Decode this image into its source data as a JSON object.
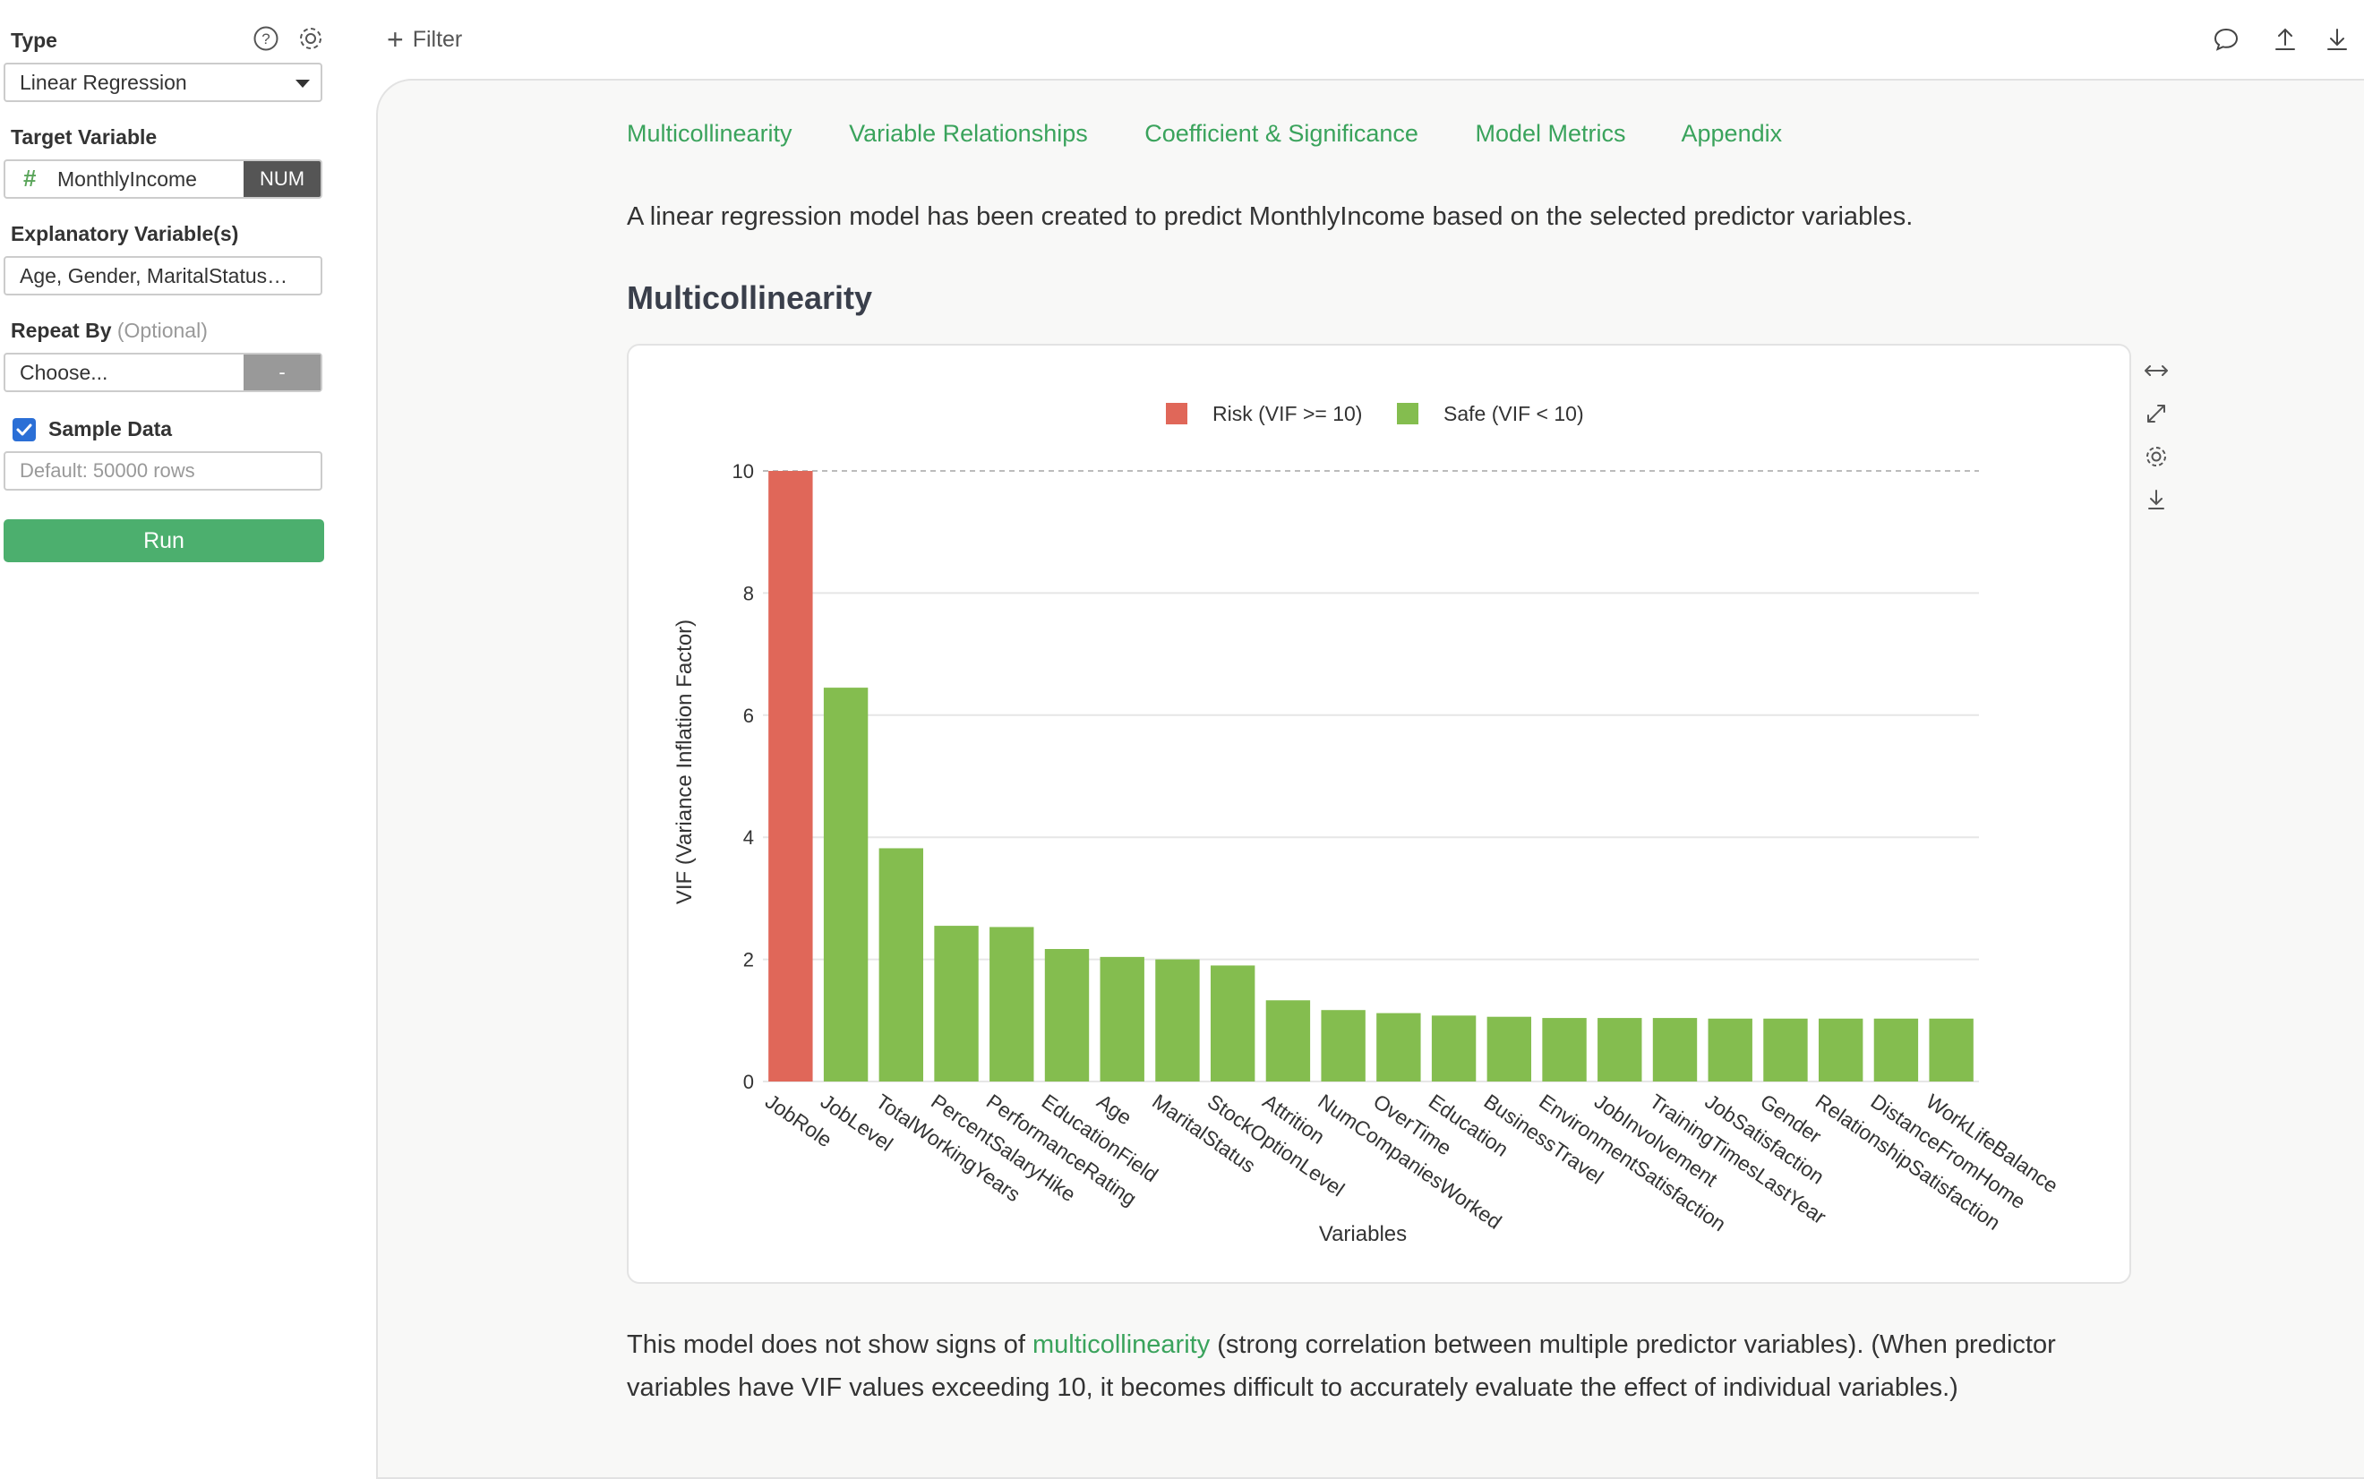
{
  "sidebar": {
    "type_label": "Type",
    "type_value": "Linear Regression",
    "target_label": "Target Variable",
    "target_value": "MonthlyIncome",
    "target_badge": "NUM",
    "explanatory_label": "Explanatory Variable(s)",
    "explanatory_value": "Age, Gender, MaritalStatus…",
    "repeat_label": "Repeat By",
    "repeat_optional": "(Optional)",
    "repeat_value": "Choose...",
    "repeat_button": "-",
    "sample_label": "Sample Data",
    "sample_checked": true,
    "sample_placeholder": "Default: 50000 rows",
    "run_label": "Run"
  },
  "topbar": {
    "filter_label": "Filter",
    "icons": [
      "comment-icon",
      "upload-icon",
      "download-icon"
    ]
  },
  "main": {
    "tabs": [
      {
        "label": "Multicollinearity"
      },
      {
        "label": "Variable Relationships"
      },
      {
        "label": "Coefficient & Significance"
      },
      {
        "label": "Model Metrics"
      },
      {
        "label": "Appendix"
      }
    ],
    "description": "A linear regression model has been created to predict MonthlyIncome based on the selected predictor variables.",
    "section_title": "Multicollinearity",
    "footer_pre": "This model does not show signs of ",
    "footer_link": "multicollinearity",
    "footer_post": " (strong correlation between multiple predictor variables). (When predictor variables have VIF values exceeding 10, it becomes difficult to accurately evaluate the effect of individual variables.)"
  },
  "colors": {
    "accent": "#3aa35c",
    "safe": "#84bd4f",
    "risk": "#e06759",
    "run": "#4caf6e"
  },
  "chart_data": {
    "type": "bar",
    "xlabel": "Variables",
    "ylabel": "VIF (Variance Inflation Factor)",
    "ylim": [
      0,
      10
    ],
    "yticks": [
      0,
      2,
      4,
      6,
      8,
      10
    ],
    "threshold": 10,
    "legend": [
      {
        "name": "Risk (VIF >= 10)",
        "color": "#e06759"
      },
      {
        "name": "Safe (VIF < 10)",
        "color": "#84bd4f"
      }
    ],
    "legend_position": "top-center",
    "categories": [
      "JobRole",
      "JobLevel",
      "TotalWorkingYears",
      "PercentSalaryHike",
      "PerformanceRating",
      "EducationField",
      "Age",
      "MaritalStatus",
      "StockOptionLevel",
      "Attrition",
      "NumCompaniesWorked",
      "OverTime",
      "Education",
      "BusinessTravel",
      "EnvironmentSatisfaction",
      "JobInvolvement",
      "TrainingTimesLastYear",
      "JobSatisfaction",
      "Gender",
      "RelationshipSatisfaction",
      "DistanceFromHome",
      "WorkLifeBalance"
    ],
    "values": [
      10.0,
      6.45,
      3.82,
      2.55,
      2.53,
      2.17,
      2.04,
      2.0,
      1.9,
      1.33,
      1.17,
      1.12,
      1.08,
      1.06,
      1.04,
      1.04,
      1.04,
      1.03,
      1.03,
      1.03,
      1.03,
      1.03
    ]
  }
}
